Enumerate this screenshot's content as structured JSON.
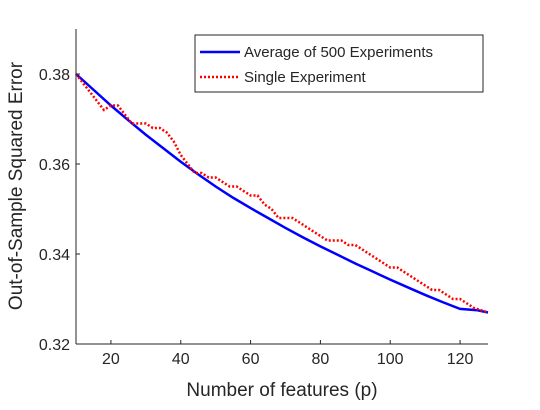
{
  "chart_data": {
    "type": "line",
    "title": "",
    "xlabel": "Number of features (p)",
    "ylabel": "Out-of-Sample Squared Error",
    "xlim": [
      10,
      128
    ],
    "ylim": [
      0.32,
      0.39
    ],
    "xticks": [
      20,
      40,
      60,
      80,
      100,
      120
    ],
    "xtick_labels": [
      "20",
      "40",
      "60",
      "80",
      "100",
      "120"
    ],
    "yticks": [
      0.32,
      0.34,
      0.36,
      0.38
    ],
    "ytick_labels": [
      "0.32",
      "0.34",
      "0.36",
      "0.38"
    ],
    "grid": false,
    "legend_position": "top-right",
    "series": [
      {
        "name": "Average of 500 Experiments",
        "color": "#0000ff",
        "style": "solid",
        "x": [
          10,
          15,
          20,
          25,
          30,
          35,
          40,
          45,
          50,
          55,
          60,
          65,
          70,
          75,
          80,
          85,
          90,
          95,
          100,
          105,
          110,
          115,
          120,
          125,
          128
        ],
        "y": [
          0.38,
          0.3765,
          0.373,
          0.3697,
          0.3665,
          0.3635,
          0.3605,
          0.3577,
          0.355,
          0.3525,
          0.3502,
          0.348,
          0.3458,
          0.3437,
          0.3417,
          0.3398,
          0.3379,
          0.3361,
          0.3343,
          0.3326,
          0.3309,
          0.3293,
          0.3278,
          0.3275,
          0.327
        ]
      },
      {
        "name": "Single Experiment",
        "color": "#ff0000",
        "style": "dotted",
        "x": [
          10,
          12,
          14,
          16,
          18,
          20,
          22,
          24,
          26,
          28,
          30,
          32,
          34,
          36,
          38,
          40,
          42,
          44,
          46,
          48,
          50,
          52,
          54,
          56,
          58,
          60,
          62,
          64,
          66,
          68,
          70,
          72,
          74,
          76,
          78,
          80,
          82,
          84,
          86,
          88,
          90,
          92,
          94,
          96,
          98,
          100,
          102,
          104,
          106,
          108,
          110,
          112,
          114,
          116,
          118,
          120,
          122,
          124,
          126,
          128
        ],
        "y": [
          0.38,
          0.378,
          0.376,
          0.374,
          0.372,
          0.373,
          0.373,
          0.371,
          0.369,
          0.369,
          0.369,
          0.368,
          0.368,
          0.367,
          0.365,
          0.362,
          0.36,
          0.358,
          0.358,
          0.357,
          0.357,
          0.356,
          0.355,
          0.355,
          0.354,
          0.353,
          0.353,
          0.351,
          0.35,
          0.348,
          0.348,
          0.348,
          0.347,
          0.346,
          0.345,
          0.344,
          0.343,
          0.343,
          0.343,
          0.342,
          0.342,
          0.341,
          0.34,
          0.339,
          0.338,
          0.337,
          0.337,
          0.336,
          0.335,
          0.334,
          0.333,
          0.332,
          0.332,
          0.331,
          0.33,
          0.33,
          0.329,
          0.328,
          0.3275,
          0.327
        ]
      }
    ]
  }
}
